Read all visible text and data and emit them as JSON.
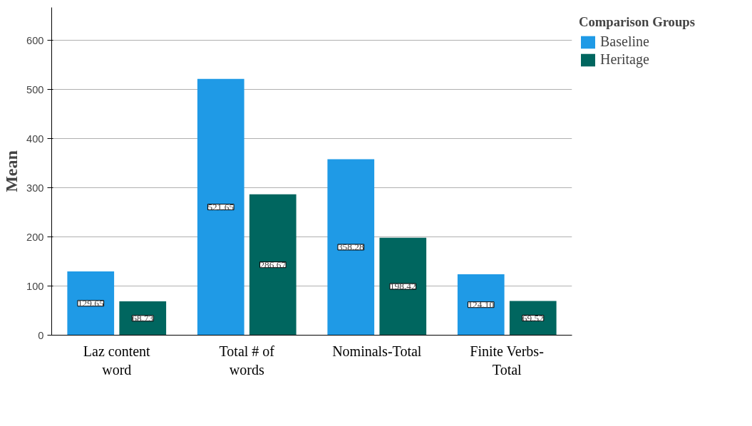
{
  "chart_data": {
    "type": "bar",
    "ylabel": "Mean",
    "legend_title": "Comparison Groups",
    "legend": "top right",
    "grid": "y",
    "categories": [
      "Laz content word",
      "Total # of words",
      "Nominals-Total",
      "Finite Verbs-Total"
    ],
    "ylim": [
      0,
      667
    ],
    "yticks": [
      0,
      100,
      200,
      300,
      400,
      500,
      600
    ],
    "series": [
      {
        "name": "Baseline",
        "color": "#1f9ae6",
        "values": [
          129.65,
          521.65,
          358.28,
          124.1
        ],
        "value_labels": [
          "129.65",
          "521.65",
          "358.28",
          "124.10"
        ]
      },
      {
        "name": "Heritage",
        "color": "#00665f",
        "values": [
          68.73,
          286.67,
          198.42,
          69.52
        ],
        "value_labels": [
          "68.73",
          "286.67",
          "198.42",
          "69.52"
        ]
      }
    ]
  }
}
